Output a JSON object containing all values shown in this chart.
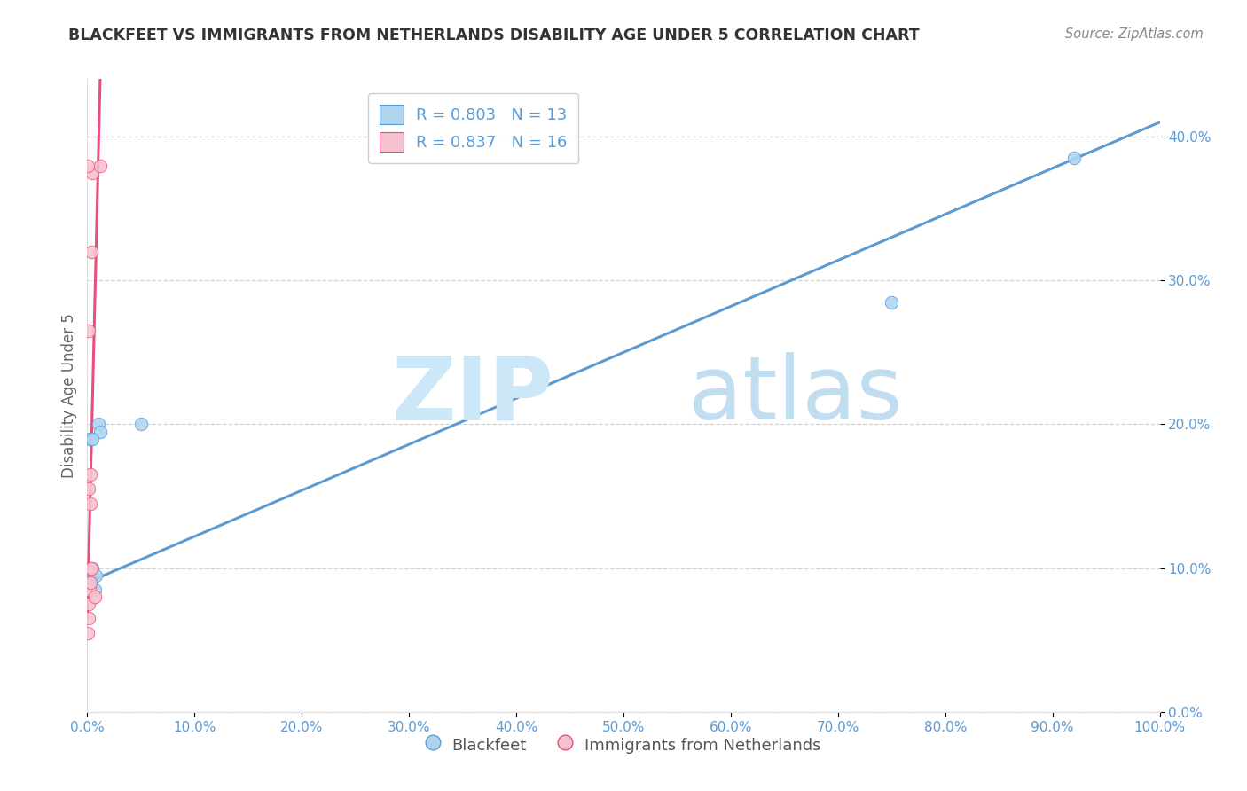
{
  "title": "BLACKFEET VS IMMIGRANTS FROM NETHERLANDS DISABILITY AGE UNDER 5 CORRELATION CHART",
  "source": "Source: ZipAtlas.com",
  "ylabel": "Disability Age Under 5",
  "legend_label_blue": "Blackfeet",
  "legend_label_pink": "Immigrants from Netherlands",
  "R_blue": 0.803,
  "N_blue": 13,
  "R_pink": 0.837,
  "N_pink": 16,
  "blue_x": [
    0.001,
    0.002,
    0.005,
    0.007,
    0.01,
    0.012,
    0.75,
    0.92,
    0.001,
    0.003,
    0.005,
    0.008,
    0.05
  ],
  "blue_y": [
    0.095,
    0.19,
    0.1,
    0.085,
    0.2,
    0.195,
    0.285,
    0.385,
    0.085,
    0.09,
    0.19,
    0.095,
    0.2
  ],
  "pink_x": [
    0.0005,
    0.001,
    0.001,
    0.001,
    0.001,
    0.002,
    0.002,
    0.003,
    0.003,
    0.003,
    0.004,
    0.004,
    0.005,
    0.007,
    0.012,
    0.0005
  ],
  "pink_y": [
    0.055,
    0.065,
    0.075,
    0.155,
    0.265,
    0.085,
    0.1,
    0.09,
    0.145,
    0.165,
    0.1,
    0.32,
    0.375,
    0.08,
    0.38,
    0.38
  ],
  "blue_line_x0": 0.0,
  "blue_line_y0": 0.09,
  "blue_line_x1": 1.0,
  "blue_line_y1": 0.41,
  "pink_line_x0": 0.0,
  "pink_line_y0": 0.065,
  "pink_line_x1": 0.012,
  "pink_line_y1": 0.44,
  "xlim": [
    0.0,
    1.0
  ],
  "ylim": [
    0.0,
    0.44
  ],
  "x_ticks": [
    0.0,
    0.1,
    0.2,
    0.3,
    0.4,
    0.5,
    0.6,
    0.7,
    0.8,
    0.9,
    1.0
  ],
  "y_ticks": [
    0.0,
    0.1,
    0.2,
    0.3,
    0.4
  ],
  "x_tick_labels": [
    "0.0%",
    "10.0%",
    "20.0%",
    "30.0%",
    "40.0%",
    "50.0%",
    "60.0%",
    "70.0%",
    "80.0%",
    "90.0%",
    "100.0%"
  ],
  "y_tick_labels_right": [
    "0.0%",
    "10.0%",
    "20.0%",
    "30.0%",
    "40.0%"
  ],
  "blue_scatter_color": "#aed4f0",
  "blue_line_color": "#5b9bd5",
  "pink_scatter_color": "#f5c2cf",
  "pink_line_color": "#e8507a",
  "background_color": "#ffffff",
  "grid_color": "#c8c8c8",
  "title_color": "#333333",
  "source_color": "#888888",
  "tick_color": "#5b9bd5",
  "ylabel_color": "#666666"
}
